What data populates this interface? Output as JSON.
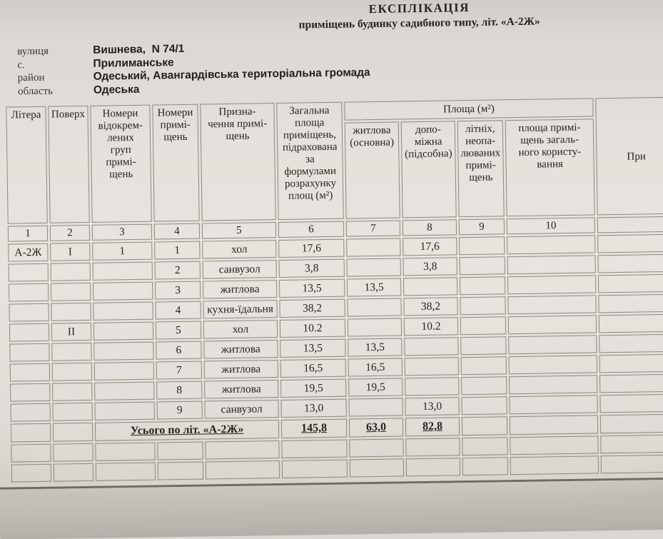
{
  "title": "ЕКСПЛІКАЦІЯ",
  "subtitle": "приміщень будинку садибного типу, літ. «А-2Ж»",
  "address": {
    "rows": [
      {
        "label": "вулиця",
        "value": "Вишнева,  N 74/1"
      },
      {
        "label": "с.",
        "value": "Прилиманське"
      },
      {
        "label": "район",
        "value": "Одеський, Авангардівська територіальна громада"
      },
      {
        "label": "область",
        "value": "Одеська"
      }
    ]
  },
  "table": {
    "headers": {
      "litera": "Літера",
      "poverkh": "Поверх",
      "group_numbers": "Номери\nвідокрем-\nлених\nгруп\nпримі-\nщень",
      "room_numbers": "Номери\nпримі-\nщень",
      "purpose": "Призна-\nчення примі-\nщень",
      "total_area": "Загальна\nплоща\nприміщень,\nпідрахована\nза\nформулами\nрозрахунку\nплощ (м²)",
      "area_group": "Площа (м²)",
      "living": "житлова\n(основна)",
      "auxiliary": "допо-\nміжна\n(підсобна)",
      "summer": "літніх,\nнеопа-\nлюваних\nпримі-\nщень",
      "common": "площа примі-\nщень загаль-\nного користу-\nвання",
      "notes": "При"
    },
    "column_numbers": [
      "1",
      "2",
      "3",
      "4",
      "5",
      "6",
      "7",
      "8",
      "9",
      "10",
      ""
    ],
    "rows": [
      [
        "А-2Ж",
        "I",
        "1",
        "1",
        "хол",
        "17,6",
        "",
        "17,6",
        "",
        "",
        ""
      ],
      [
        "",
        "",
        "",
        "2",
        "санвузол",
        "3,8",
        "",
        "3,8",
        "",
        "",
        ""
      ],
      [
        "",
        "",
        "",
        "3",
        "житлова",
        "13,5",
        "13,5",
        "",
        "",
        "",
        ""
      ],
      [
        "",
        "",
        "",
        "4",
        "кухня-їдальня",
        "38,2",
        "",
        "38,2",
        "",
        "",
        ""
      ],
      [
        "",
        "II",
        "",
        "5",
        "хол",
        "10.2",
        "",
        "10.2",
        "",
        "",
        ""
      ],
      [
        "",
        "",
        "",
        "6",
        "житлова",
        "13,5",
        "13,5",
        "",
        "",
        "",
        ""
      ],
      [
        "",
        "",
        "",
        "7",
        "житлова",
        "16,5",
        "16,5",
        "",
        "",
        "",
        ""
      ],
      [
        "",
        "",
        "",
        "8",
        "житлова",
        "19,5",
        "19,5",
        "",
        "",
        "",
        ""
      ],
      [
        "",
        "",
        "",
        "9",
        "санвузол",
        "13,0",
        "",
        "13,0",
        "",
        "",
        ""
      ]
    ],
    "totals": {
      "label": "Усього по літ. «А-2Ж»",
      "total_area": "145,8",
      "living": "63,0",
      "auxiliary": "82,8"
    },
    "empty_rows": [
      [
        "",
        "",
        "",
        "",
        "",
        "",
        "",
        "",
        "",
        "",
        ""
      ],
      [
        "",
        "",
        "",
        "",
        "",
        "",
        "",
        "",
        "",
        "",
        ""
      ]
    ]
  }
}
